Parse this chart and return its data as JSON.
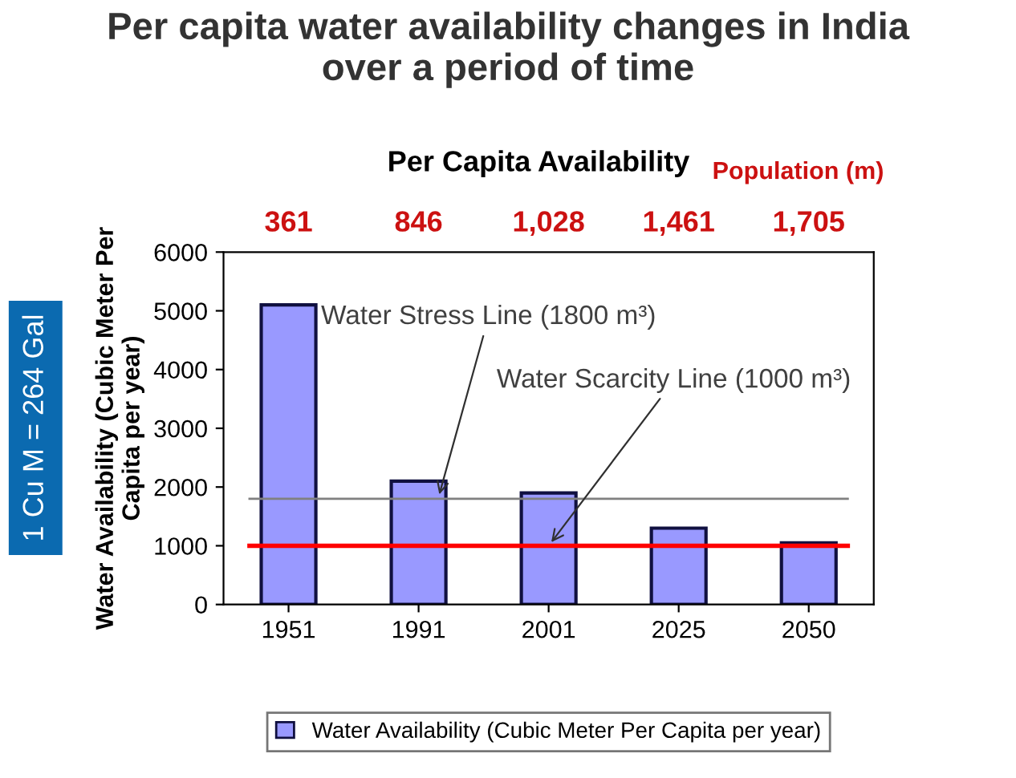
{
  "chart_data": {
    "type": "bar",
    "title": "Per capita water availability changes in India\nover a period of time",
    "subtitle": "Per Capita Availability",
    "ylabel": "Water Availability (Cubic Meter Per\nCapita per year)",
    "categories": [
      "1951",
      "1991",
      "2001",
      "2025",
      "2050"
    ],
    "series": [
      {
        "name": "Water Availability (Cubic Meter Per Capita per year)",
        "color": "#9999ff",
        "values": [
          5100,
          2100,
          1900,
          1300,
          1050
        ]
      }
    ],
    "ylim": [
      0,
      6000
    ],
    "yticks": [
      0,
      1000,
      2000,
      3000,
      4000,
      5000,
      6000
    ],
    "grid": false,
    "legend": "bottom",
    "ref_lines": [
      {
        "axis": "y",
        "value": 1800,
        "label": "Water Stress Line (1800 m³)",
        "color": "#808080"
      },
      {
        "axis": "y",
        "value": 1000,
        "label": "Water Scarcity Line (1000 m³)",
        "color": "#ff0000"
      }
    ],
    "annotations": [
      "Population (m)",
      "361",
      "846",
      "1,028",
      "1,461",
      "1,705",
      "1 Cu M = 264 Gal"
    ]
  }
}
